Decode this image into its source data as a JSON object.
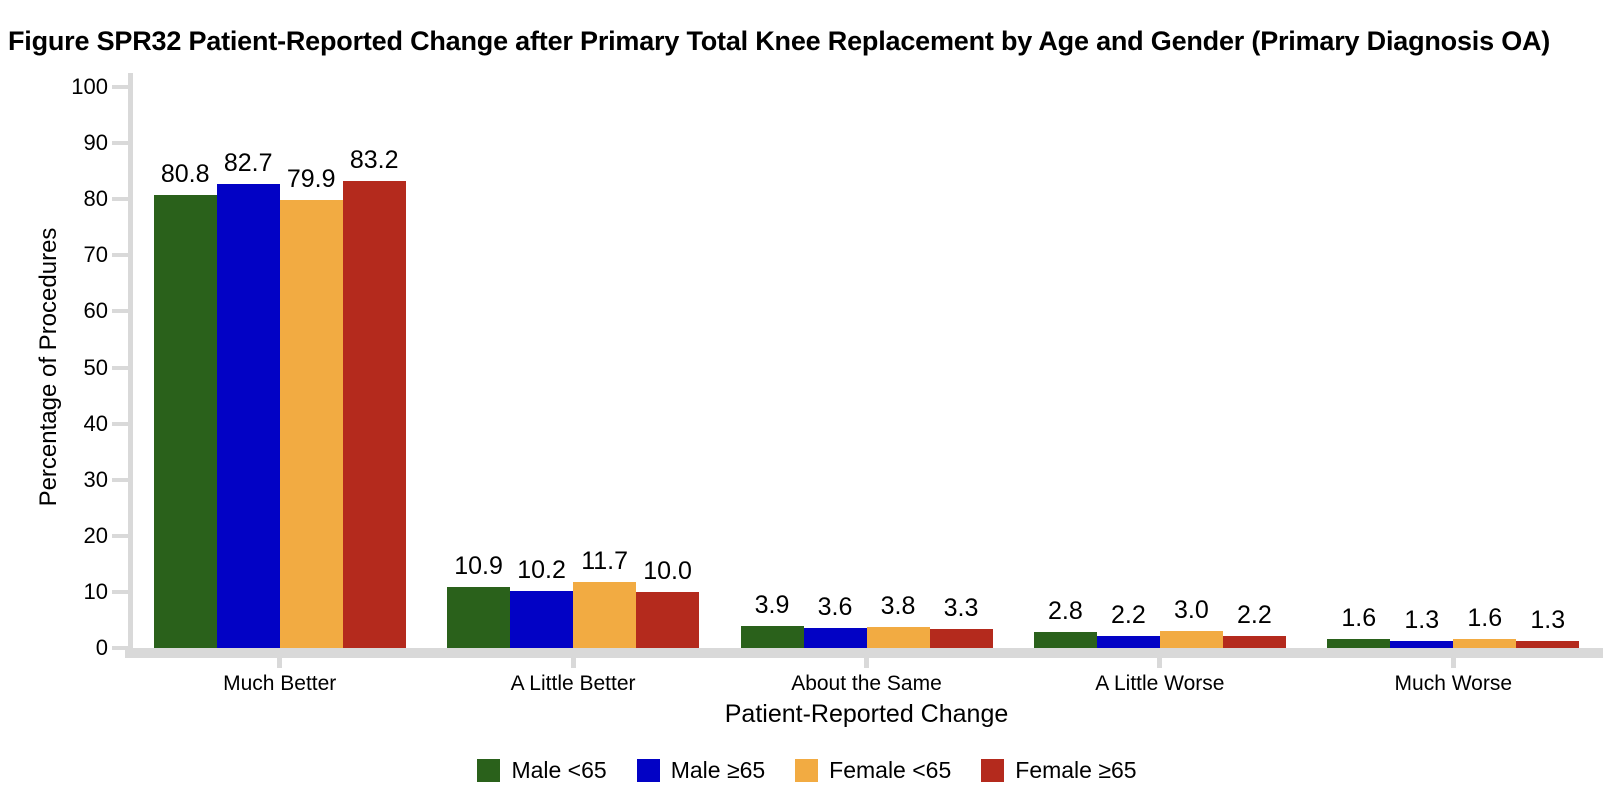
{
  "chart_data": {
    "type": "bar",
    "title": "Figure SPR32 Patient-Reported Change after Primary Total Knee Replacement by Age and Gender (Primary Diagnosis OA)",
    "xlabel": "Patient-Reported Change",
    "ylabel": "Percentage of Procedures",
    "ylim": [
      0,
      100
    ],
    "ytick_interval": 10,
    "grid": false,
    "legend_position": "bottom",
    "bar_value_labels": true,
    "value_label_decimals": 1,
    "categories": [
      "Much Better",
      "A Little Better",
      "About the Same",
      "A Little Worse",
      "Much Worse"
    ],
    "series": [
      {
        "name": "Male <65",
        "color": "#2A611B",
        "values": [
          80.8,
          10.9,
          3.9,
          2.8,
          1.6
        ]
      },
      {
        "name": "Male ≥65",
        "color": "#0202C5",
        "values": [
          82.7,
          10.2,
          3.6,
          2.2,
          1.3
        ]
      },
      {
        "name": "Female <65",
        "color": "#F2AB42",
        "values": [
          79.9,
          11.7,
          3.8,
          3.0,
          1.6
        ]
      },
      {
        "name": "Female ≥65",
        "color": "#B42A1D",
        "values": [
          83.2,
          10.0,
          3.3,
          2.2,
          1.3
        ]
      }
    ],
    "colors": {
      "axis": "#D9D9D9",
      "text": "#000000",
      "background": "#FFFFFF"
    }
  }
}
